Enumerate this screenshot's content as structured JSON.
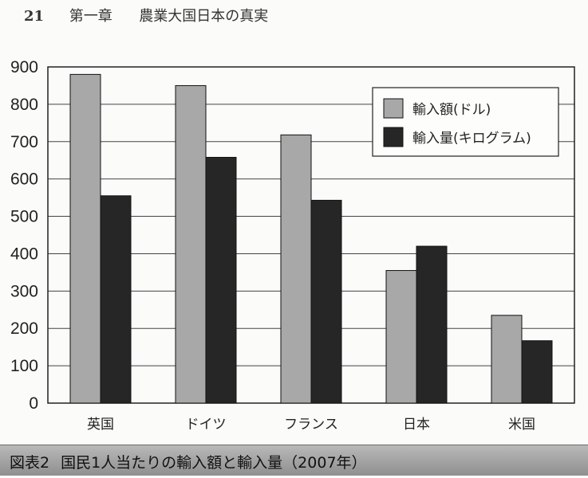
{
  "header": {
    "page_number": "21",
    "chapter": "第一章",
    "chapter_title": "農業大国日本の真実"
  },
  "caption": {
    "figure_label": "図表2",
    "title": "国民1人当たりの輸入額と輸入量（2007年）"
  },
  "colors": {
    "value_series": "#a8a8a8",
    "volume_series": "#262626",
    "frame": "#222222",
    "caption_band": "#9e9e9e"
  },
  "chart_data": {
    "type": "bar",
    "title": "",
    "xlabel": "",
    "ylabel": "",
    "categories": [
      "英国",
      "ドイツ",
      "フランス",
      "日本",
      "米国"
    ],
    "series": [
      {
        "name": "輸入額(ドル)",
        "values": [
          880,
          850,
          718,
          355,
          235
        ]
      },
      {
        "name": "輸入量(キログラム)",
        "values": [
          555,
          658,
          543,
          420,
          167
        ]
      }
    ],
    "ylim": [
      0,
      900
    ],
    "yticks": [
      0,
      100,
      200,
      300,
      400,
      500,
      600,
      700,
      800,
      900
    ],
    "grid": "horizontal",
    "legend_position": "top-right"
  }
}
